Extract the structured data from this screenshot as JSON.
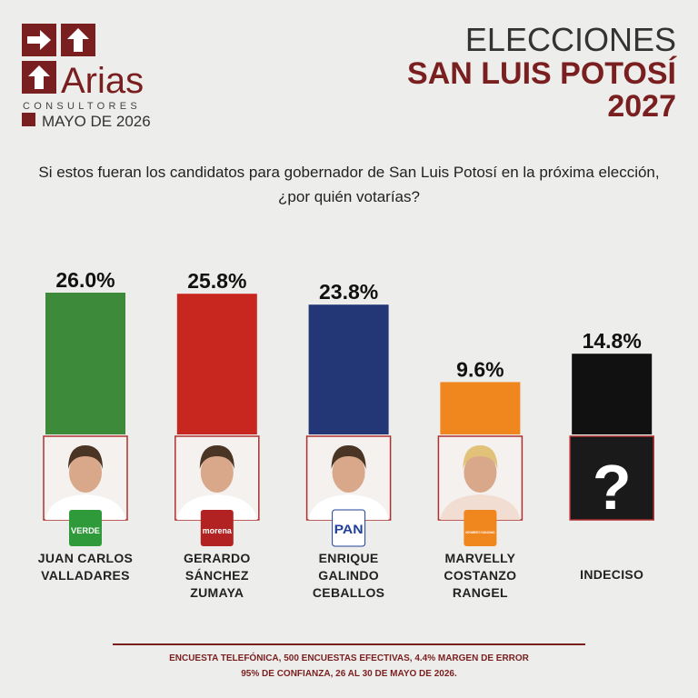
{
  "header": {
    "brand": "Arias",
    "brand_subtitle": "CONSULTORES",
    "date": "MAYO DE 2026",
    "title_line1": "ELECCIONES",
    "title_line2": "SAN LUIS POTOSÍ",
    "title_line3": "2027"
  },
  "question": "Si estos fueran los candidatos para gobernador de San Luis Potosí en la próxima elección, ¿por quién votarías?",
  "chart_data": {
    "type": "bar",
    "categories": [
      "JUAN CARLOS\nVALLADARES",
      "GERARDO\nSÁNCHEZ\nZUMAYA",
      "ENRIQUE\nGALINDO\nCEBALLOS",
      "MARVELLY\nCOSTANZO\nRANGEL",
      "INDECISO"
    ],
    "values": [
      26.0,
      25.8,
      23.8,
      9.6,
      14.8
    ],
    "value_labels": [
      "26.0%",
      "25.8%",
      "23.8%",
      "9.6%",
      "14.8%"
    ],
    "colors": [
      "#3c8a3a",
      "#c8271f",
      "#233676",
      "#ef861e",
      "#111111"
    ],
    "party_logos": [
      "VERDE",
      "morena",
      "PAN",
      "MOVIMIENTO CIUDADANO",
      null
    ],
    "undecided_icon": "?"
  },
  "footer": "ENCUESTA TELEFÓNICA, 500 ENCUESTAS EFECTIVAS, 4.4%  MARGEN DE ERROR\n95% DE CONFIANZA, 26 AL 30 DE MAYO DE 2026."
}
